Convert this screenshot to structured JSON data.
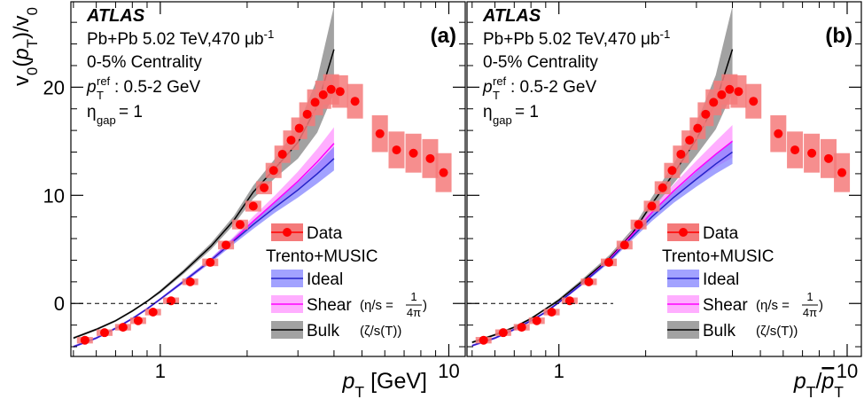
{
  "chart_data": [
    {
      "type": "scatter",
      "label": "(a)",
      "experiment": "ATLAS",
      "system": [
        "Pb+Pb 5.02 TeV,470 μb",
        "-1"
      ],
      "centrality": "0-5% Centrality",
      "ref": [
        "p",
        "ref",
        "T",
        ": 0.5-2 GeV"
      ],
      "gap": [
        "η",
        "gap",
        " = 1"
      ],
      "y_label": [
        "v",
        "0",
        "(",
        "p",
        "T",
        ")/v",
        "0"
      ],
      "x_label": [
        "p",
        "T",
        " [GeV]"
      ],
      "xscale": "log",
      "xlim": [
        0.49,
        11.4
      ],
      "xticks": [
        1,
        10
      ],
      "xminorticks": [
        0.5,
        0.6,
        0.7,
        0.8,
        0.9,
        2,
        3,
        4,
        5,
        6,
        7,
        8,
        9
      ],
      "ylim": [
        -4.9,
        27.9
      ],
      "yticks": [
        0,
        10,
        20
      ],
      "yminorticks": [
        -4,
        -2,
        2,
        4,
        6,
        8,
        12,
        14,
        16,
        18,
        22,
        24,
        26
      ],
      "hline": 0,
      "legend_header": "Trento+MUSIC",
      "series": [
        {
          "name": "Data",
          "color": "#ff0000",
          "box_color": "#f47a7a",
          "x": [
            0.548,
            0.641,
            0.743,
            0.838,
            0.944,
            1.09,
            1.27,
            1.49,
            1.69,
            1.89,
            2.1,
            2.29,
            2.47,
            2.65,
            2.84,
            3.03,
            3.23,
            3.44,
            3.67,
            3.91,
            4.2,
            4.73,
            5.77,
            6.59,
            7.54,
            8.62,
            9.59
          ],
          "values": [
            -3.4,
            -2.7,
            -2.2,
            -1.6,
            -0.8,
            0.25,
            2.0,
            3.8,
            5.4,
            7.3,
            9.0,
            10.7,
            12.3,
            13.8,
            15.1,
            16.2,
            17.5,
            18.6,
            19.3,
            19.8,
            19.6,
            18.7,
            15.7,
            14.2,
            13.9,
            13.4,
            12.1
          ],
          "sys": [
            0.3,
            0.3,
            0.3,
            0.3,
            0.3,
            0.3,
            0.3,
            0.35,
            0.4,
            0.45,
            0.5,
            0.6,
            0.7,
            0.8,
            0.9,
            1.0,
            1.1,
            1.2,
            1.3,
            1.4,
            1.5,
            1.6,
            1.7,
            1.7,
            1.8,
            1.8,
            1.8
          ]
        },
        {
          "name": "Ideal",
          "color": "#2424c8",
          "band_color": "#7b7bff",
          "x": [
            0.5,
            0.6,
            0.7,
            0.8,
            0.9,
            1.0,
            1.2,
            1.5,
            1.8,
            2.1,
            2.5,
            3.0,
            3.5,
            4.0
          ],
          "values": [
            -4.0,
            -3.2,
            -2.3,
            -1.4,
            -0.5,
            0.4,
            2.0,
            4.0,
            5.8,
            7.3,
            8.9,
            10.5,
            12.0,
            13.4
          ],
          "band": [
            0.1,
            0.1,
            0.1,
            0.1,
            0.1,
            0.1,
            0.15,
            0.2,
            0.3,
            0.4,
            0.5,
            0.7,
            0.9,
            1.1
          ]
        },
        {
          "name": "Shear",
          "note": [
            "(η/s = ",
            "1",
            "4π",
            ")"
          ],
          "color": "#ff00ff",
          "band_color": "#ff8cff",
          "x": [
            0.5,
            0.6,
            0.7,
            0.8,
            0.9,
            1.0,
            1.2,
            1.5,
            1.8,
            2.1,
            2.5,
            3.0,
            3.5,
            4.0
          ],
          "values": [
            -4.0,
            -3.2,
            -2.3,
            -1.4,
            -0.5,
            0.4,
            2.0,
            4.0,
            5.9,
            7.6,
            9.4,
            11.3,
            13.1,
            14.8
          ],
          "band": [
            0.1,
            0.1,
            0.1,
            0.1,
            0.1,
            0.1,
            0.15,
            0.2,
            0.3,
            0.45,
            0.6,
            0.9,
            1.2,
            1.5
          ]
        },
        {
          "name": "Bulk",
          "note": [
            "(ζ/s(T))"
          ],
          "color": "#000000",
          "band_color": "#7a7a7a",
          "x": [
            0.5,
            0.6,
            0.7,
            0.8,
            0.9,
            1.0,
            1.2,
            1.5,
            1.8,
            2.1,
            2.5,
            3.0,
            3.5,
            4.0
          ],
          "values": [
            -3.2,
            -2.4,
            -1.6,
            -0.7,
            0.2,
            1.1,
            2.9,
            5.3,
            7.7,
            10.3,
            12.5,
            14.9,
            18.3,
            23.5
          ],
          "band": [
            0.1,
            0.1,
            0.1,
            0.1,
            0.1,
            0.15,
            0.2,
            0.3,
            0.4,
            0.6,
            0.9,
            1.5,
            2.5,
            4.0
          ]
        }
      ]
    },
    {
      "type": "scatter",
      "label": "(b)",
      "experiment": "ATLAS",
      "system": [
        "Pb+Pb 5.02 TeV,470 μb",
        "-1"
      ],
      "centrality": "0-5% Centrality",
      "ref": [
        "p",
        "ref",
        "T",
        ": 0.5-2 GeV"
      ],
      "gap": [
        "η",
        "gap",
        " = 1"
      ],
      "x_label": [
        "p",
        "T",
        "/",
        "p",
        "T"
      ],
      "xscale": "log",
      "xlim": [
        0.48,
        11.2
      ],
      "xticks": [
        1,
        10
      ],
      "xminorticks": [
        0.5,
        0.6,
        0.7,
        0.8,
        0.9,
        2,
        3,
        4,
        5,
        6,
        7,
        8,
        9
      ],
      "ylim": [
        -4.9,
        27.9
      ],
      "yticks": [
        0,
        10,
        20
      ],
      "ytick_labels": false,
      "yminorticks": [
        -4,
        -2,
        2,
        4,
        6,
        8,
        12,
        14,
        16,
        18,
        22,
        24,
        26
      ],
      "hline": 0,
      "legend_header": "Trento+MUSIC",
      "series": [
        {
          "name": "Data",
          "color": "#ff0000",
          "box_color": "#f47a7a",
          "x": [
            0.548,
            0.641,
            0.743,
            0.838,
            0.944,
            1.09,
            1.27,
            1.49,
            1.69,
            1.89,
            2.1,
            2.29,
            2.47,
            2.65,
            2.84,
            3.03,
            3.23,
            3.44,
            3.67,
            3.91,
            4.2,
            4.73,
            5.77,
            6.59,
            7.54,
            8.62,
            9.59
          ],
          "values": [
            -3.4,
            -2.7,
            -2.2,
            -1.6,
            -0.8,
            0.25,
            2.0,
            3.8,
            5.4,
            7.3,
            9.0,
            10.7,
            12.3,
            13.8,
            15.1,
            16.2,
            17.5,
            18.6,
            19.3,
            19.8,
            19.6,
            18.7,
            15.7,
            14.2,
            13.9,
            13.4,
            12.1
          ],
          "sys": [
            0.3,
            0.3,
            0.3,
            0.3,
            0.3,
            0.3,
            0.3,
            0.35,
            0.4,
            0.45,
            0.5,
            0.6,
            0.7,
            0.8,
            0.9,
            1.0,
            1.1,
            1.2,
            1.3,
            1.4,
            1.5,
            1.6,
            1.7,
            1.7,
            1.8,
            1.8,
            1.8
          ]
        },
        {
          "name": "Ideal",
          "color": "#2424c8",
          "band_color": "#7b7bff",
          "x": [
            0.5,
            0.6,
            0.7,
            0.8,
            0.9,
            1.0,
            1.2,
            1.5,
            1.8,
            2.1,
            2.5,
            3.0,
            3.5,
            4.0
          ],
          "values": [
            -3.9,
            -3.2,
            -2.4,
            -1.6,
            -0.8,
            0.1,
            1.8,
            4.0,
            6.2,
            8.0,
            9.8,
            11.5,
            12.9,
            14.0
          ],
          "band": [
            0.1,
            0.1,
            0.1,
            0.1,
            0.1,
            0.1,
            0.15,
            0.2,
            0.3,
            0.4,
            0.5,
            0.7,
            0.9,
            1.1
          ]
        },
        {
          "name": "Shear",
          "note": [
            "(η/s = ",
            "1",
            "4π",
            ")"
          ],
          "color": "#ff00ff",
          "band_color": "#ff8cff",
          "x": [
            0.5,
            0.6,
            0.7,
            0.8,
            0.9,
            1.0,
            1.2,
            1.5,
            1.8,
            2.1,
            2.5,
            3.0,
            3.5,
            4.0
          ],
          "values": [
            -3.9,
            -3.2,
            -2.4,
            -1.6,
            -0.8,
            0.1,
            1.8,
            4.1,
            6.4,
            8.4,
            10.4,
            12.3,
            13.8,
            15.0
          ],
          "band": [
            0.1,
            0.1,
            0.1,
            0.1,
            0.1,
            0.1,
            0.15,
            0.2,
            0.3,
            0.45,
            0.6,
            0.9,
            1.2,
            1.5
          ]
        },
        {
          "name": "Bulk",
          "note": [
            "(ζ/s(T))"
          ],
          "color": "#000000",
          "band_color": "#7a7a7a",
          "x": [
            0.5,
            0.6,
            0.7,
            0.8,
            0.9,
            1.0,
            1.2,
            1.5,
            1.8,
            2.1,
            2.5,
            3.0,
            3.5,
            4.0
          ],
          "values": [
            -3.6,
            -2.9,
            -2.2,
            -1.4,
            -0.5,
            0.3,
            2.0,
            4.2,
            6.5,
            9.2,
            12.0,
            15.2,
            18.6,
            23.5
          ],
          "band": [
            0.1,
            0.1,
            0.1,
            0.1,
            0.1,
            0.15,
            0.2,
            0.3,
            0.4,
            0.6,
            0.9,
            1.5,
            2.5,
            4.0
          ]
        }
      ]
    }
  ]
}
